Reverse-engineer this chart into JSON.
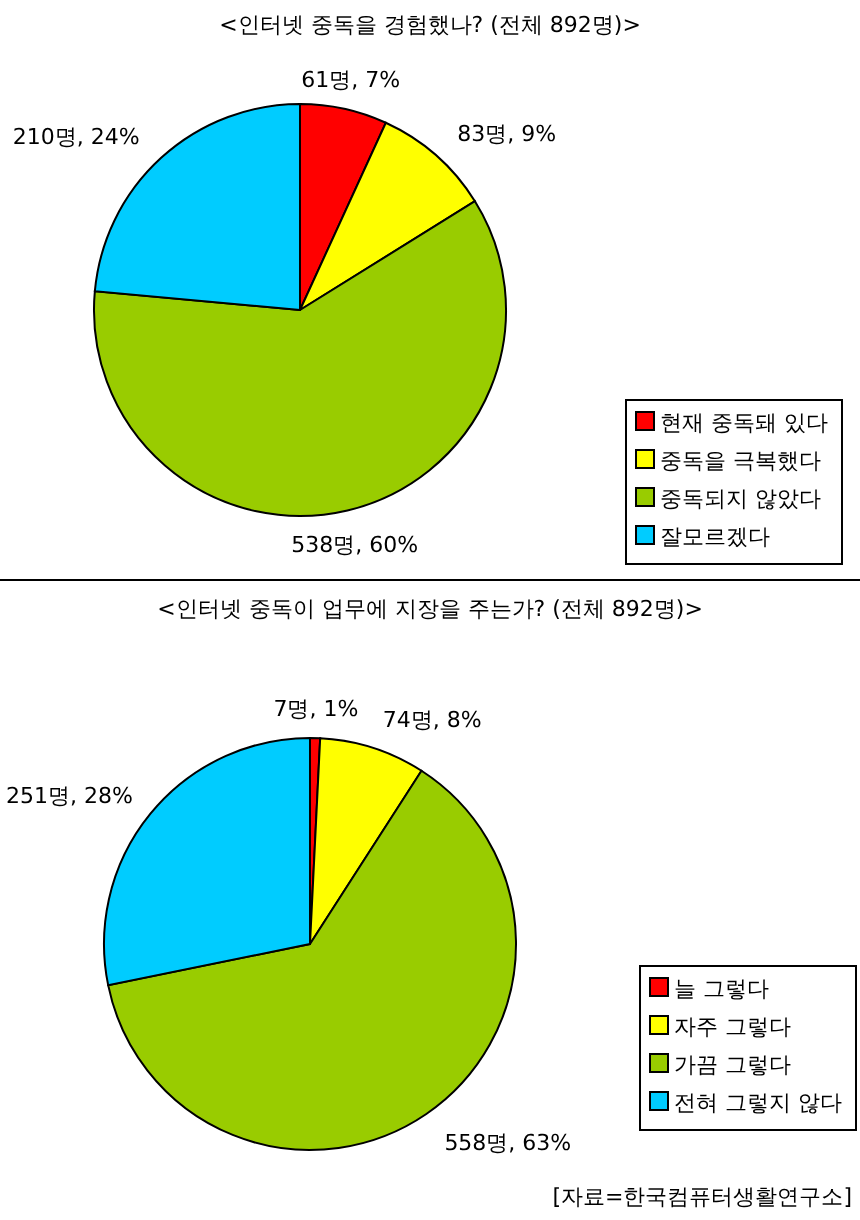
{
  "chart_data": [
    {
      "type": "pie",
      "title": "<인터넷 중독을 경험했나? (전체 892명)>",
      "categories": [
        "현재 중독돼 있다",
        "중독을 극복했다",
        "중독되지 않았다",
        "잘모르겠다"
      ],
      "values": [
        61,
        83,
        538,
        210
      ],
      "value_labels": [
        "61명, 7%",
        "83명, 9%",
        "538명, 60%",
        "210명, 24%"
      ],
      "colors": [
        "#ff0000",
        "#ffff00",
        "#99cc00",
        "#00ccff"
      ],
      "legend": "bottom right"
    },
    {
      "type": "pie",
      "title": "<인터넷 중독이 업무에 지장을 주는가? (전체 892명)>",
      "categories": [
        "늘 그렇다",
        "자주 그렇다",
        "가끔 그렇다",
        "전혀 그렇지 않다"
      ],
      "values": [
        7,
        74,
        558,
        251
      ],
      "value_labels": [
        "7명, 1%",
        "74명, 8%",
        "558명, 63%",
        "251명, 28%"
      ],
      "colors": [
        "#ff0000",
        "#ffff00",
        "#99cc00",
        "#00ccff"
      ],
      "legend": "bottom right",
      "annotations": [
        "[자료=한국컴퓨터생활연구소]"
      ]
    }
  ]
}
